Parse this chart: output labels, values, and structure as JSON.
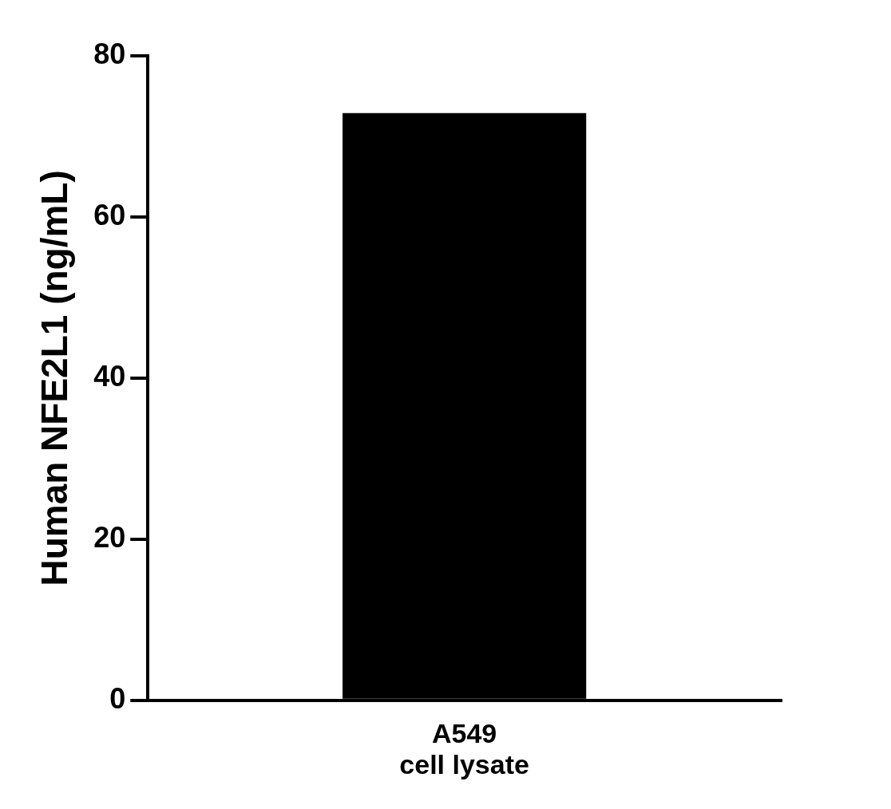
{
  "chart_data": {
    "type": "bar",
    "categories": [
      "A549\ncell lysate"
    ],
    "values": [
      72.9
    ],
    "color": "#000000",
    "ylabel": "Human NFE2L1 (ng/mL)",
    "ylim": [
      0,
      80
    ],
    "yticks": [
      0,
      20,
      40,
      60,
      80
    ],
    "grid": false,
    "legend": false
  }
}
